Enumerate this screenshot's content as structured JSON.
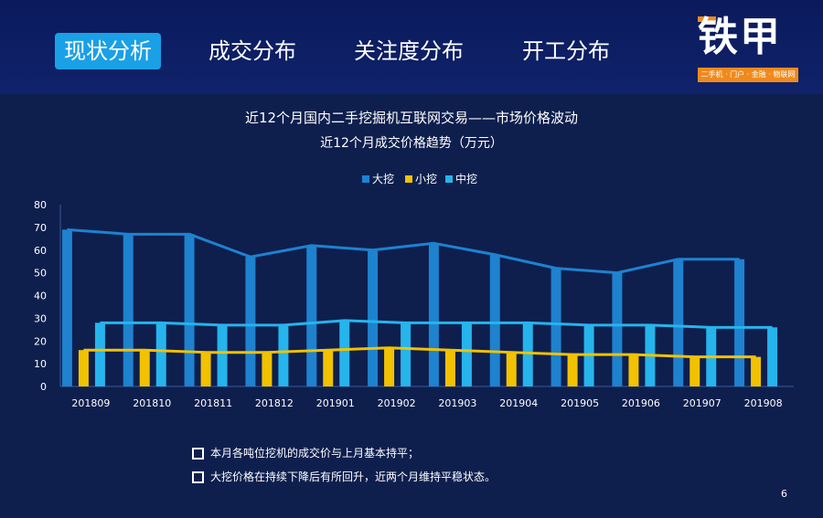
{
  "nav": {
    "tabs": [
      {
        "label": "现状分析",
        "active": true
      },
      {
        "label": "成交分布",
        "active": false
      },
      {
        "label": "关注度分布",
        "active": false
      },
      {
        "label": "开工分布",
        "active": false
      }
    ]
  },
  "logo": {
    "name": "铁甲",
    "tagline": "二手机 · 门户 · 金融 · 物联网"
  },
  "colors": {
    "big": "#1e82cf",
    "small": "#f2c200",
    "mid": "#26b4ec",
    "background": "#0e1f4e",
    "accent": "#1aa0e6"
  },
  "chart_data": {
    "type": "bar",
    "title": "近12个月国内二手挖掘机互联网交易——市场价格波动",
    "subtitle": "近12个月成交价格趋势（万元）",
    "categories": [
      "201809",
      "201810",
      "201811",
      "201812",
      "201901",
      "201902",
      "201903",
      "201904",
      "201905",
      "201906",
      "201907",
      "201908"
    ],
    "series": [
      {
        "name": "大挖",
        "values": [
          69,
          67,
          67,
          57,
          62,
          60,
          63,
          58,
          52,
          50,
          56,
          56
        ]
      },
      {
        "name": "小挖",
        "values": [
          16,
          16,
          15,
          15,
          16,
          17,
          16,
          15,
          14,
          14,
          13,
          13
        ]
      },
      {
        "name": "中挖",
        "values": [
          28,
          28,
          27,
          27,
          29,
          28,
          28,
          28,
          27,
          27,
          26,
          26
        ]
      }
    ],
    "ylim": [
      0,
      80
    ],
    "yticks": [
      0,
      10,
      20,
      30,
      40,
      50,
      60,
      70,
      80
    ],
    "legend_position": "top-center",
    "grid": false,
    "trendlines": true
  },
  "notes": [
    "本月各吨位挖机的成交价与上月基本持平；",
    "大挖价格在持续下降后有所回升，近两个月维持平稳状态。"
  ],
  "page_number": "6"
}
